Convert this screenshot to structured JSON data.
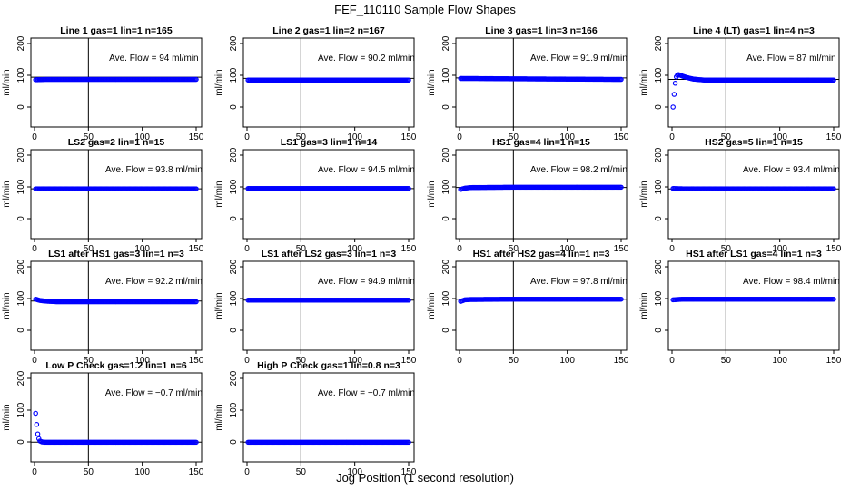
{
  "title": "FEF_110110  Sample Flow Shapes",
  "xlabel": "Jog Position (1 second resolution)",
  "colors": {
    "points": "#0000ff",
    "frame": "#000000"
  },
  "chart_data": {
    "type": "scatter",
    "xlim": [
      0,
      150
    ],
    "ylim": [
      0,
      200
    ],
    "x_ticks": [
      0,
      50,
      100,
      150
    ],
    "y_ticks": [
      0,
      100,
      200
    ],
    "ylabel": "ml/min",
    "reference_x": 50,
    "annotation_prefix": "Ave. Flow = ",
    "annotation_unit": " ml/min",
    "panels": [
      {
        "title": "Line 1 gas=1 lin=1 n=165",
        "ave_flow": "94",
        "points": [
          [
            1,
            86
          ],
          [
            10,
            87
          ],
          [
            50,
            87
          ],
          [
            100,
            87
          ],
          [
            150,
            87
          ]
        ]
      },
      {
        "title": "Line 2 gas=1 lin=2 n=167",
        "ave_flow": "90.2",
        "points": [
          [
            1,
            85
          ],
          [
            10,
            85
          ],
          [
            50,
            85
          ],
          [
            100,
            85
          ],
          [
            150,
            85
          ]
        ]
      },
      {
        "title": "Line 3 gas=1 lin=3 n=166",
        "ave_flow": "91.9",
        "points": [
          [
            1,
            90
          ],
          [
            10,
            90
          ],
          [
            50,
            89
          ],
          [
            100,
            88
          ],
          [
            150,
            87
          ]
        ]
      },
      {
        "title": "Line 4 (LT) gas=1 lin=4 n=3",
        "ave_flow": "87",
        "points": [
          [
            1,
            0
          ],
          [
            2,
            40
          ],
          [
            3,
            75
          ],
          [
            4,
            95
          ],
          [
            5,
            100
          ],
          [
            6,
            102
          ],
          [
            8,
            100
          ],
          [
            10,
            97
          ],
          [
            15,
            92
          ],
          [
            20,
            88
          ],
          [
            30,
            85
          ],
          [
            50,
            85
          ],
          [
            100,
            85
          ],
          [
            150,
            85
          ]
        ]
      },
      {
        "title": "LS2 gas=2 lin=1 n=15",
        "ave_flow": "93.8",
        "points": [
          [
            1,
            94
          ],
          [
            10,
            94
          ],
          [
            50,
            94
          ],
          [
            100,
            94
          ],
          [
            150,
            94
          ]
        ]
      },
      {
        "title": "LS1 gas=3 lin=1 n=14",
        "ave_flow": "94.5",
        "points": [
          [
            1,
            95
          ],
          [
            10,
            95
          ],
          [
            50,
            95
          ],
          [
            100,
            95
          ],
          [
            150,
            95
          ]
        ]
      },
      {
        "title": "HS1 gas=4 lin=1 n=15",
        "ave_flow": "98.2",
        "points": [
          [
            1,
            92
          ],
          [
            5,
            96
          ],
          [
            10,
            98
          ],
          [
            50,
            99
          ],
          [
            100,
            99
          ],
          [
            150,
            99
          ]
        ]
      },
      {
        "title": "HS2 gas=5 lin=1 n=15",
        "ave_flow": "93.4",
        "points": [
          [
            1,
            95
          ],
          [
            10,
            94
          ],
          [
            50,
            94
          ],
          [
            100,
            94
          ],
          [
            150,
            94
          ]
        ]
      },
      {
        "title": "LS1 after HS1 gas=3 lin=1 n=3",
        "ave_flow": "92.2",
        "points": [
          [
            1,
            98
          ],
          [
            5,
            94
          ],
          [
            10,
            92
          ],
          [
            20,
            90
          ],
          [
            50,
            90
          ],
          [
            100,
            90
          ],
          [
            150,
            90
          ]
        ]
      },
      {
        "title": "LS1 after LS2 gas=3 lin=1 n=3",
        "ave_flow": "94.9",
        "points": [
          [
            1,
            95
          ],
          [
            10,
            95
          ],
          [
            50,
            95
          ],
          [
            100,
            95
          ],
          [
            150,
            95
          ]
        ]
      },
      {
        "title": "HS1 after HS2 gas=4 lin=1 n=3",
        "ave_flow": "97.8",
        "points": [
          [
            1,
            91
          ],
          [
            5,
            96
          ],
          [
            10,
            97
          ],
          [
            50,
            98
          ],
          [
            100,
            98
          ],
          [
            150,
            98
          ]
        ]
      },
      {
        "title": "HS1 after LS1 gas=4 lin=1 n=3",
        "ave_flow": "98.4",
        "points": [
          [
            1,
            96
          ],
          [
            5,
            97
          ],
          [
            10,
            98
          ],
          [
            50,
            98
          ],
          [
            100,
            98
          ],
          [
            150,
            98
          ]
        ]
      },
      {
        "title": "Low P Check gas=1.2 lin=1 n=6",
        "ave_flow": "−0.7",
        "points": [
          [
            1,
            90
          ],
          [
            2,
            55
          ],
          [
            3,
            25
          ],
          [
            4,
            10
          ],
          [
            5,
            3
          ],
          [
            7,
            0
          ],
          [
            10,
            -1
          ],
          [
            50,
            -1
          ],
          [
            100,
            -1
          ],
          [
            150,
            -1
          ]
        ]
      },
      {
        "title": "High P Check gas=1 lin=0.8 n=3",
        "ave_flow": "−0.7",
        "points": [
          [
            1,
            -1
          ],
          [
            10,
            -1
          ],
          [
            50,
            -1
          ],
          [
            100,
            -1
          ],
          [
            150,
            -1
          ]
        ]
      }
    ]
  }
}
